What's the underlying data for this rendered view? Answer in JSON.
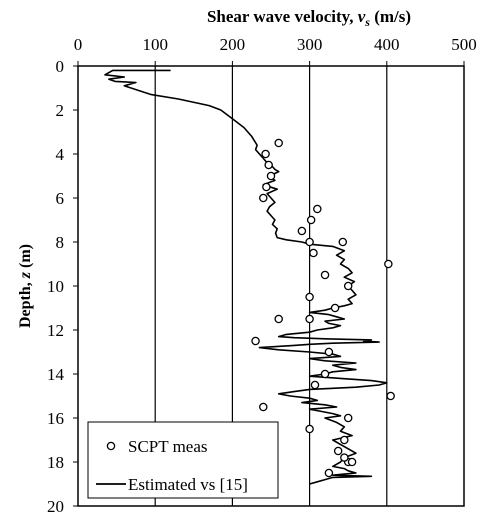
{
  "chart_data": {
    "type": "scatter",
    "title": {
      "prefix": "Shear wave velocity, ",
      "var": "v",
      "sub": "s",
      "suffix": " (m/s)"
    },
    "ylabel": {
      "prefix": "Depth, ",
      "var": "z",
      "suffix": " (m)"
    },
    "xlim": [
      0,
      500
    ],
    "ylim": [
      0,
      20
    ],
    "y_inverted": true,
    "x_axis_position": "top",
    "x_ticks": [
      0,
      100,
      200,
      300,
      400,
      500
    ],
    "y_ticks": [
      0,
      2,
      4,
      6,
      8,
      10,
      12,
      14,
      16,
      18,
      20
    ],
    "x_grid": true,
    "y_grid": false,
    "legend_position": "bottom-left",
    "series": [
      {
        "name": "SCPT meas",
        "style": "open-circle",
        "x": [
          260,
          243,
          247,
          250,
          244,
          240,
          310,
          302,
          290,
          300,
          305,
          343,
          402,
          320,
          350,
          300,
          333,
          300,
          260,
          230,
          325,
          320,
          307,
          405,
          240,
          350,
          300,
          345,
          337,
          350,
          355,
          345,
          325
        ],
        "y": [
          3.5,
          4.0,
          4.5,
          5.0,
          5.5,
          6.0,
          6.5,
          7.0,
          7.5,
          8.0,
          8.5,
          8.0,
          9.0,
          9.5,
          10.0,
          10.5,
          11.0,
          11.5,
          11.5,
          12.5,
          13.0,
          14.0,
          14.5,
          15.0,
          15.5,
          16.0,
          16.5,
          17.0,
          17.5,
          18.0,
          18.0,
          17.8,
          18.5
        ]
      },
      {
        "name": "Estimated vs [15]",
        "style": "line",
        "x": [
          120,
          45,
          35,
          60,
          40,
          48,
          75,
          60,
          95,
          130,
          170,
          185,
          200,
          215,
          225,
          232,
          230,
          235,
          240,
          245,
          250,
          255,
          260,
          248,
          255,
          240,
          258,
          245,
          250,
          255,
          248,
          245,
          250,
          255,
          252,
          258,
          256,
          258,
          270,
          290,
          300,
          330,
          345,
          335,
          345,
          340,
          350,
          355,
          345,
          358,
          350,
          355,
          360,
          350,
          355,
          345,
          330,
          320,
          300,
          325,
          335,
          345,
          320,
          325,
          340,
          330,
          310,
          300,
          270,
          260,
          280,
          320,
          380,
          370,
          390,
          330,
          300,
          280,
          235,
          260,
          300,
          330,
          340,
          300,
          320,
          360,
          330,
          340,
          360,
          330,
          320,
          300,
          340,
          380,
          400,
          390,
          360,
          300,
          280,
          260,
          275,
          300,
          310,
          290,
          320,
          335,
          300,
          315,
          330,
          340,
          320,
          335,
          345,
          340,
          355,
          330,
          340,
          350,
          360,
          345,
          340,
          330,
          345,
          350,
          360,
          345,
          330,
          380,
          330,
          320,
          310,
          300
        ],
        "y": [
          0.2,
          0.2,
          0.4,
          0.5,
          0.6,
          0.7,
          0.75,
          0.9,
          1.3,
          1.5,
          1.8,
          2.0,
          2.4,
          2.8,
          3.2,
          3.6,
          3.8,
          4.0,
          4.2,
          4.4,
          4.5,
          4.7,
          4.8,
          5.0,
          5.2,
          5.4,
          5.6,
          5.8,
          6.0,
          6.2,
          6.4,
          6.6,
          6.8,
          7.0,
          7.2,
          7.4,
          7.6,
          7.8,
          7.9,
          8.0,
          8.1,
          8.2,
          8.4,
          8.6,
          8.8,
          9.0,
          9.2,
          9.4,
          9.6,
          9.8,
          10.0,
          10.2,
          10.4,
          10.6,
          10.8,
          10.9,
          11.0,
          11.1,
          11.2,
          11.3,
          11.4,
          11.5,
          11.6,
          11.7,
          11.8,
          11.9,
          12.0,
          12.1,
          12.2,
          12.3,
          12.35,
          12.4,
          12.45,
          12.5,
          12.55,
          12.6,
          12.65,
          12.7,
          12.8,
          12.9,
          13.0,
          13.1,
          13.2,
          13.3,
          13.4,
          13.5,
          13.6,
          13.7,
          13.8,
          13.9,
          14.0,
          14.1,
          14.2,
          14.3,
          14.4,
          14.5,
          14.6,
          14.7,
          14.8,
          14.9,
          15.0,
          15.1,
          15.2,
          15.3,
          15.4,
          15.5,
          15.6,
          15.7,
          15.8,
          15.9,
          16.0,
          16.2,
          16.4,
          16.6,
          16.8,
          17.0,
          17.2,
          17.4,
          17.6,
          17.8,
          18.0,
          18.2,
          18.3,
          18.4,
          18.5,
          18.55,
          18.6,
          18.65,
          18.7,
          18.8,
          18.9,
          19.0
        ]
      }
    ]
  }
}
